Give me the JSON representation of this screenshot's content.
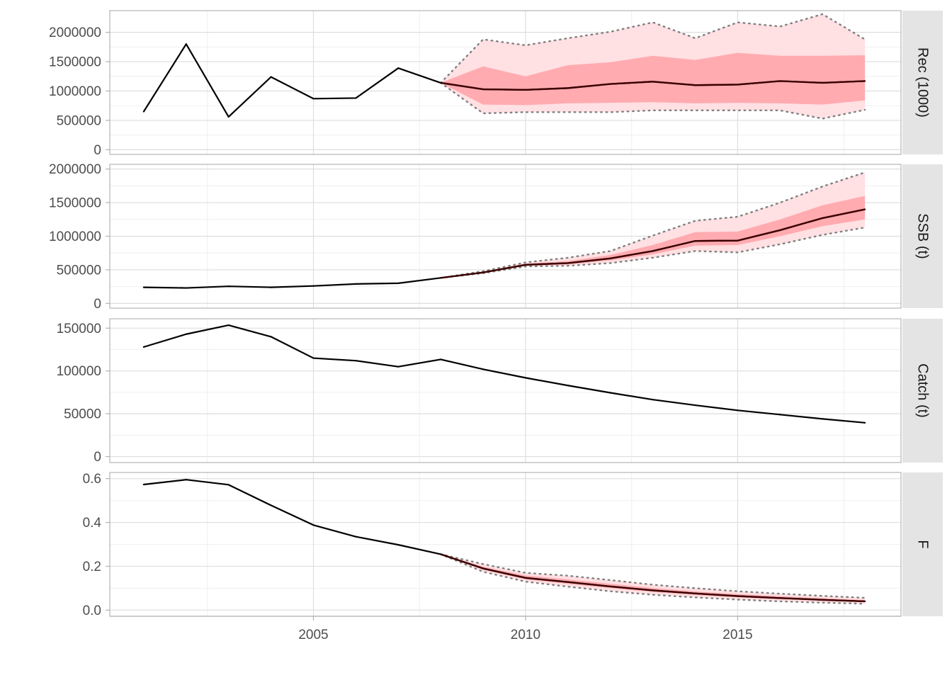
{
  "chart_data": {
    "type": "line",
    "x_ticks": [
      2005,
      2010,
      2015
    ],
    "xlim": [
      2000.2,
      2018.85
    ],
    "grid": true,
    "legend": "none",
    "colors": {
      "line": "#000000",
      "median_projection": "#3b0000",
      "band_outer": "#ffe0e3",
      "band_inner": "#ffabb0",
      "ci_dotted": "#7f7f7f",
      "strip_bg": "#e4e4e4",
      "panel_border": "#b3b3b3",
      "grid_major": "#dedede",
      "grid_minor": "#efefef"
    },
    "panels": [
      {
        "strip": "Rec (1000)",
        "ylim": [
          -80000,
          2370000
        ],
        "y_ticks": [
          0,
          500000,
          1000000,
          1500000,
          2000000
        ],
        "y_labels": [
          "0",
          "500000",
          "1000000",
          "1500000",
          "2000000"
        ],
        "series": [
          {
            "x": [
              2001,
              2002,
              2003,
              2004,
              2005,
              2006,
              2007,
              2008,
              2009,
              2010,
              2011,
              2012,
              2013,
              2014,
              2015,
              2016,
              2017,
              2018
            ],
            "y": [
              650000,
              1800000,
              560000,
              1240000,
              870000,
              880000,
              1390000,
              1140000,
              1030000,
              1020000,
              1050000,
              1120000,
              1160000,
              1100000,
              1110000,
              1170000,
              1140000,
              1170000
            ]
          }
        ],
        "projection": {
          "x": [
            2008,
            2009,
            2010,
            2011,
            2012,
            2013,
            2014,
            2015,
            2016,
            2017,
            2018
          ],
          "median": [
            1140000,
            1030000,
            1020000,
            1050000,
            1120000,
            1160000,
            1100000,
            1110000,
            1170000,
            1140000,
            1170000
          ],
          "p05": [
            1140000,
            620000,
            640000,
            640000,
            640000,
            670000,
            670000,
            670000,
            670000,
            530000,
            680000
          ],
          "p25": [
            1140000,
            770000,
            760000,
            790000,
            800000,
            810000,
            790000,
            800000,
            790000,
            770000,
            840000
          ],
          "p75": [
            1140000,
            1420000,
            1250000,
            1440000,
            1490000,
            1600000,
            1530000,
            1650000,
            1600000,
            1600000,
            1610000
          ],
          "p95": [
            1140000,
            1880000,
            1780000,
            1900000,
            2010000,
            2170000,
            1900000,
            2170000,
            2100000,
            2310000,
            1880000
          ]
        }
      },
      {
        "strip": "SSB (t)",
        "ylim": [
          -70000,
          2070000
        ],
        "y_ticks": [
          0,
          500000,
          1000000,
          1500000,
          2000000
        ],
        "y_labels": [
          "0",
          "500000",
          "1000000",
          "1500000",
          "2000000"
        ],
        "series": [
          {
            "x": [
              2001,
              2002,
              2003,
              2004,
              2005,
              2006,
              2007,
              2008,
              2009,
              2010,
              2011,
              2012,
              2013,
              2014,
              2015,
              2016,
              2017,
              2018
            ],
            "y": [
              240000,
              230000,
              255000,
              240000,
              260000,
              290000,
              300000,
              380000,
              460000,
              575000,
              600000,
              670000,
              780000,
              930000,
              935000,
              1090000,
              1270000,
              1400000
            ]
          }
        ],
        "projection": {
          "x": [
            2008,
            2009,
            2010,
            2011,
            2012,
            2013,
            2014,
            2015,
            2016,
            2017,
            2018
          ],
          "median": [
            380000,
            460000,
            575000,
            600000,
            670000,
            780000,
            930000,
            935000,
            1090000,
            1270000,
            1400000
          ],
          "p05": [
            380000,
            450000,
            550000,
            560000,
            600000,
            680000,
            780000,
            760000,
            880000,
            1020000,
            1130000
          ],
          "p25": [
            380000,
            455000,
            560000,
            580000,
            640000,
            730000,
            860000,
            870000,
            1000000,
            1150000,
            1250000
          ],
          "p75": [
            380000,
            470000,
            590000,
            630000,
            720000,
            870000,
            1060000,
            1070000,
            1250000,
            1460000,
            1600000
          ],
          "p95": [
            380000,
            480000,
            610000,
            680000,
            780000,
            1010000,
            1230000,
            1290000,
            1500000,
            1740000,
            1950000
          ]
        }
      },
      {
        "strip": "Catch (t)",
        "ylim": [
          -7000,
          161000
        ],
        "y_ticks": [
          0,
          50000,
          100000,
          150000
        ],
        "y_labels": [
          "0",
          "50000",
          "100000",
          "150000"
        ],
        "series": [
          {
            "x": [
              2001,
              2002,
              2003,
              2004,
              2005,
              2006,
              2007,
              2008,
              2009,
              2010,
              2011,
              2012,
              2013,
              2014,
              2015,
              2016,
              2017,
              2018
            ],
            "y": [
              128000,
              143000,
              153500,
              140000,
              115000,
              112000,
              105000,
              113500,
              102000,
              92000,
              83000,
              74500,
              66500,
              60000,
              54000,
              49000,
              44000,
              39500
            ]
          }
        ]
      },
      {
        "strip": "F",
        "ylim": [
          -0.028,
          0.628
        ],
        "y_ticks": [
          0.0,
          0.2,
          0.4,
          0.6
        ],
        "y_labels": [
          "0.0",
          "0.2",
          "0.4",
          "0.6"
        ],
        "series": [
          {
            "x": [
              2001,
              2002,
              2003,
              2004,
              2005,
              2006,
              2007,
              2008,
              2009,
              2010,
              2011,
              2012,
              2013,
              2014,
              2015,
              2016,
              2017,
              2018
            ],
            "y": [
              0.573,
              0.595,
              0.572,
              0.478,
              0.388,
              0.335,
              0.298,
              0.255,
              0.19,
              0.147,
              0.128,
              0.108,
              0.09,
              0.076,
              0.064,
              0.055,
              0.047,
              0.04
            ]
          }
        ],
        "projection": {
          "x": [
            2008,
            2009,
            2010,
            2011,
            2012,
            2013,
            2014,
            2015,
            2016,
            2017,
            2018
          ],
          "median": [
            0.255,
            0.19,
            0.147,
            0.128,
            0.108,
            0.09,
            0.076,
            0.064,
            0.055,
            0.047,
            0.04
          ],
          "p05": [
            0.255,
            0.175,
            0.13,
            0.107,
            0.086,
            0.07,
            0.058,
            0.048,
            0.04,
            0.034,
            0.029
          ],
          "p25": [
            0.255,
            0.185,
            0.14,
            0.12,
            0.1,
            0.083,
            0.069,
            0.058,
            0.049,
            0.042,
            0.036
          ],
          "p75": [
            0.255,
            0.198,
            0.158,
            0.14,
            0.12,
            0.101,
            0.085,
            0.073,
            0.063,
            0.054,
            0.046
          ],
          "p95": [
            0.255,
            0.21,
            0.17,
            0.157,
            0.137,
            0.116,
            0.1,
            0.086,
            0.075,
            0.065,
            0.056
          ]
        }
      }
    ]
  }
}
